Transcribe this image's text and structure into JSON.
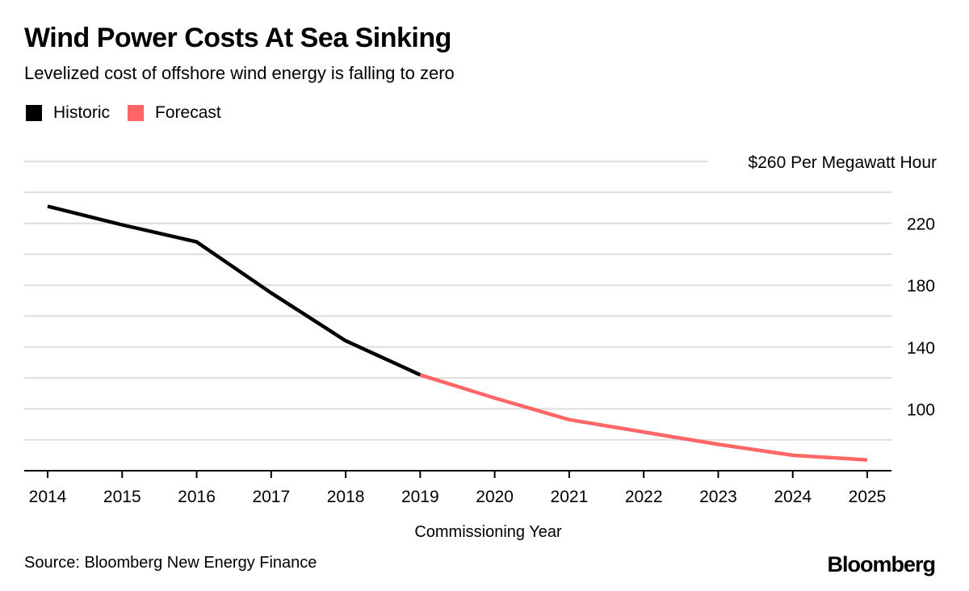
{
  "title": "Wind Power Costs At Sea Sinking",
  "subtitle": "Levelized cost of offshore wind energy is falling to zero",
  "legend": {
    "historic_label": "Historic",
    "forecast_label": "Forecast"
  },
  "source": "Source: Bloomberg New Energy Finance",
  "brand": "Bloomberg",
  "colors": {
    "historic": "#000000",
    "forecast": "#ff6666",
    "grid": "#dddddd",
    "axis": "#000000"
  },
  "chart_data": {
    "type": "line",
    "xlabel": "Commissioning Year",
    "ylabel": "",
    "top_tick_label": "$260 Per Megawatt Hour",
    "ylim": [
      60,
      260
    ],
    "yticks": [
      260,
      220,
      180,
      140,
      100
    ],
    "x": [
      2014,
      2015,
      2016,
      2017,
      2018,
      2019,
      2020,
      2021,
      2022,
      2023,
      2024,
      2025
    ],
    "series": [
      {
        "name": "Historic",
        "x": [
          2014,
          2015,
          2016,
          2017,
          2018,
          2019
        ],
        "values": [
          231,
          219,
          208,
          175,
          144,
          122
        ],
        "color": "#000000"
      },
      {
        "name": "Forecast",
        "x": [
          2019,
          2020,
          2021,
          2022,
          2023,
          2024,
          2025
        ],
        "values": [
          122,
          107,
          93,
          85,
          77,
          70,
          67
        ],
        "color": "#ff6666"
      }
    ],
    "grid": true
  }
}
